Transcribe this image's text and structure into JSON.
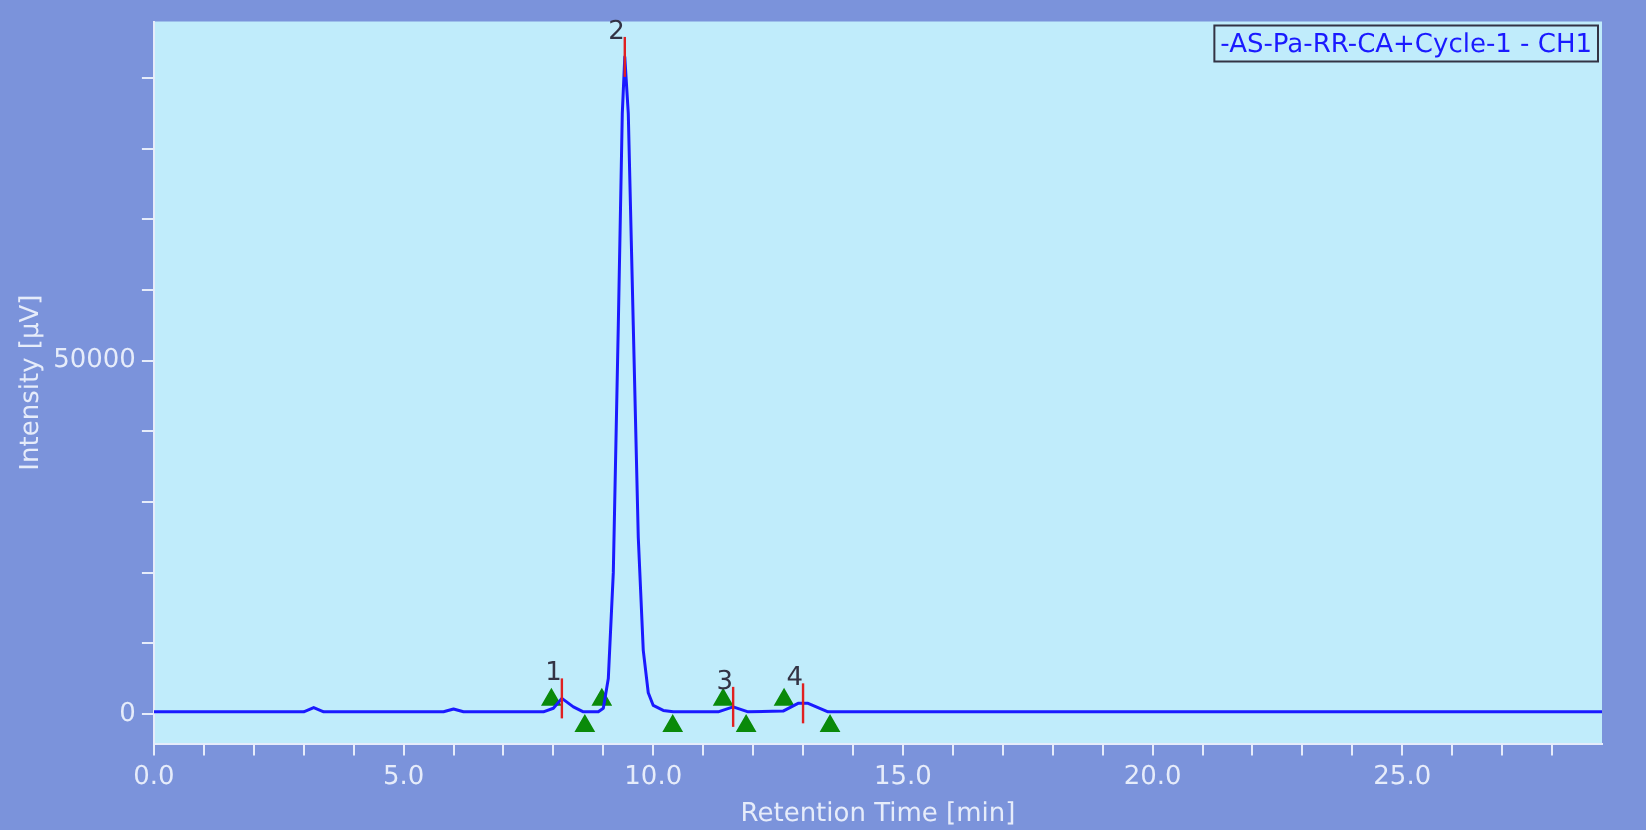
{
  "chart_data": {
    "type": "line",
    "xlabel": "Retention Time [min]",
    "ylabel": "Intensity [µV]",
    "xlim": [
      0,
      29
    ],
    "ylim": [
      -4200,
      98000
    ],
    "xticks": [
      {
        "value": 0,
        "label": "0.0"
      },
      {
        "value": 1,
        "label": null
      },
      {
        "value": 2,
        "label": null
      },
      {
        "value": 3,
        "label": null
      },
      {
        "value": 4,
        "label": null
      },
      {
        "value": 5,
        "label": "5.0"
      },
      {
        "value": 6,
        "label": null
      },
      {
        "value": 7,
        "label": null
      },
      {
        "value": 8,
        "label": null
      },
      {
        "value": 9,
        "label": null
      },
      {
        "value": 10,
        "label": "10.0"
      },
      {
        "value": 11,
        "label": null
      },
      {
        "value": 12,
        "label": null
      },
      {
        "value": 13,
        "label": null
      },
      {
        "value": 14,
        "label": null
      },
      {
        "value": 15,
        "label": "15.0"
      },
      {
        "value": 16,
        "label": null
      },
      {
        "value": 17,
        "label": null
      },
      {
        "value": 18,
        "label": null
      },
      {
        "value": 19,
        "label": null
      },
      {
        "value": 20,
        "label": "20.0"
      },
      {
        "value": 21,
        "label": null
      },
      {
        "value": 22,
        "label": null
      },
      {
        "value": 23,
        "label": null
      },
      {
        "value": 24,
        "label": null
      },
      {
        "value": 25,
        "label": "25.0"
      },
      {
        "value": 26,
        "label": null
      },
      {
        "value": 27,
        "label": null
      },
      {
        "value": 28,
        "label": null
      }
    ],
    "yticks": [
      0,
      {
        "value": 10000,
        "label": null
      },
      {
        "value": 20000,
        "label": null
      },
      {
        "value": 30000,
        "label": null
      },
      {
        "value": 40000,
        "label": null
      },
      50000,
      {
        "value": 60000,
        "label": null
      },
      {
        "value": 70000,
        "label": null
      },
      {
        "value": 80000,
        "label": null
      },
      {
        "value": 90000,
        "label": null
      }
    ],
    "grid": false,
    "legend": "top right",
    "series": [
      {
        "name": "-AS-Pa-RR-CA+Cycle-1 - CH1",
        "color": "#1a1aff",
        "marker": "none",
        "x": [
          0,
          2,
          3.0,
          3.2,
          3.4,
          5.8,
          6.0,
          6.2,
          7.8,
          8.0,
          8.17,
          8.4,
          8.6,
          8.9,
          9.0,
          9.1,
          9.2,
          9.3,
          9.38,
          9.43,
          9.5,
          9.6,
          9.7,
          9.8,
          9.9,
          10.0,
          10.2,
          10.4,
          11.3,
          11.6,
          11.9,
          12.6,
          12.9,
          13.1,
          13.5,
          29
        ],
        "values": [
          300,
          300,
          300,
          900,
          300,
          300,
          700,
          300,
          300,
          800,
          2200,
          1000,
          300,
          300,
          800,
          5000,
          20000,
          55000,
          85000,
          93000,
          85000,
          55000,
          25000,
          9000,
          3000,
          1200,
          500,
          300,
          300,
          1000,
          300,
          400,
          1500,
          1500,
          300,
          300
        ]
      },
      {
        "type": "scatter",
        "color": "#0a8a0a",
        "marker": "triangle",
        "x": [
          7.96,
          8.97,
          11.4,
          12.62
        ],
        "values": [
          2000,
          2000,
          2000,
          2000
        ]
      },
      {
        "type": "scatter",
        "color": "#0a8a0a",
        "marker": "triangle",
        "x": [
          8.63,
          10.39,
          11.86,
          13.54
        ],
        "values": [
          -1700,
          -1700,
          -1700,
          -1700
        ]
      }
    ],
    "annotations": [
      {
        "text": "1",
        "x": 8.17,
        "y": 2200
      },
      {
        "text": "2",
        "x": 9.43,
        "y": 93000
      },
      {
        "text": "3",
        "x": 11.6,
        "y": 1000
      },
      {
        "text": "4",
        "x": 13.0,
        "y": 1500
      }
    ]
  }
}
